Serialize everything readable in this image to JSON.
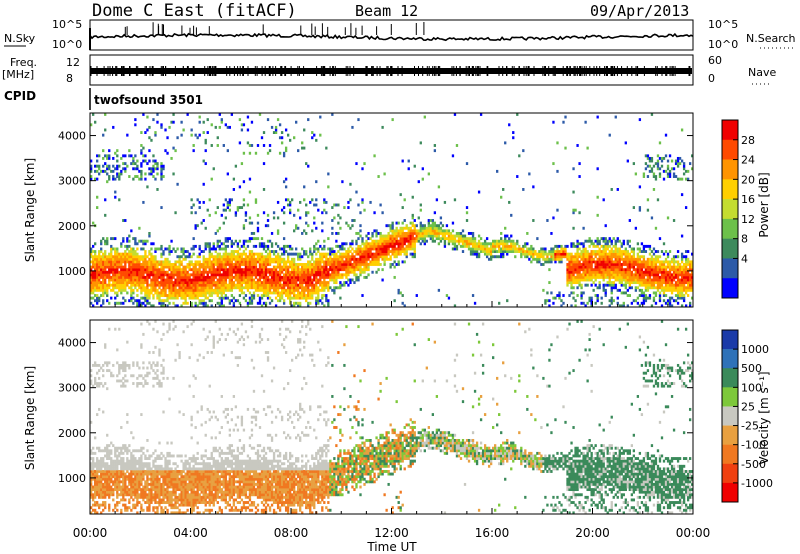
{
  "header": {
    "station": "Dome C East (fitACF)",
    "beam": "Beam 12",
    "date": "09/Apr/2013"
  },
  "panels": {
    "nsky": {
      "label": "N.Sky",
      "ticks": [
        "10^5",
        "10^0"
      ],
      "right_label": "N.Search",
      "right_ticks": [
        "10^5",
        "10^0"
      ]
    },
    "freq": {
      "label_line1": "Freq.",
      "label_line2": "[MHz]",
      "ticks": [
        "12",
        "8"
      ],
      "right_label": "Nave",
      "right_ticks": [
        "60",
        "0"
      ]
    },
    "cpid": {
      "label": "CPID",
      "value": "twofsound 3501"
    }
  },
  "chart_data": [
    {
      "type": "heatmap",
      "name": "power",
      "ylabel": "Slant Range [km]",
      "yticks": [
        1000,
        2000,
        3000,
        4000
      ],
      "ylim": [
        200,
        4500
      ],
      "xlim": [
        0,
        24
      ],
      "colorbar": {
        "label": "Power [dB]",
        "ticks": [
          28,
          24,
          20,
          16,
          12,
          8,
          4
        ],
        "colors": [
          "#f00000",
          "#ff4a00",
          "#ff9400",
          "#ffcf00",
          "#c4dc30",
          "#6cc04a",
          "#3d8a5c",
          "#2c5aa8",
          "#0000ff"
        ]
      }
    },
    {
      "type": "heatmap",
      "name": "velocity",
      "ylabel": "Slant Range [km]",
      "yticks": [
        1000,
        2000,
        3000,
        4000
      ],
      "ylim": [
        200,
        4500
      ],
      "xlim": [
        0,
        24
      ],
      "xticks": [
        "00:00",
        "04:00",
        "08:00",
        "12:00",
        "16:00",
        "20:00",
        "00:00"
      ],
      "xlabel": "Time UT",
      "colorbar": {
        "label": "Velocity [m s⁻¹]",
        "ticks": [
          "1000",
          "500",
          "100",
          "25",
          "-25",
          "-100",
          "-500",
          "-1000"
        ],
        "colors": [
          "#1a3aa8",
          "#2f72b8",
          "#3a8a5a",
          "#7dc83a",
          "#c8c8c0",
          "#e8a040",
          "#f07820",
          "#f04010",
          "#f00000"
        ]
      }
    }
  ]
}
